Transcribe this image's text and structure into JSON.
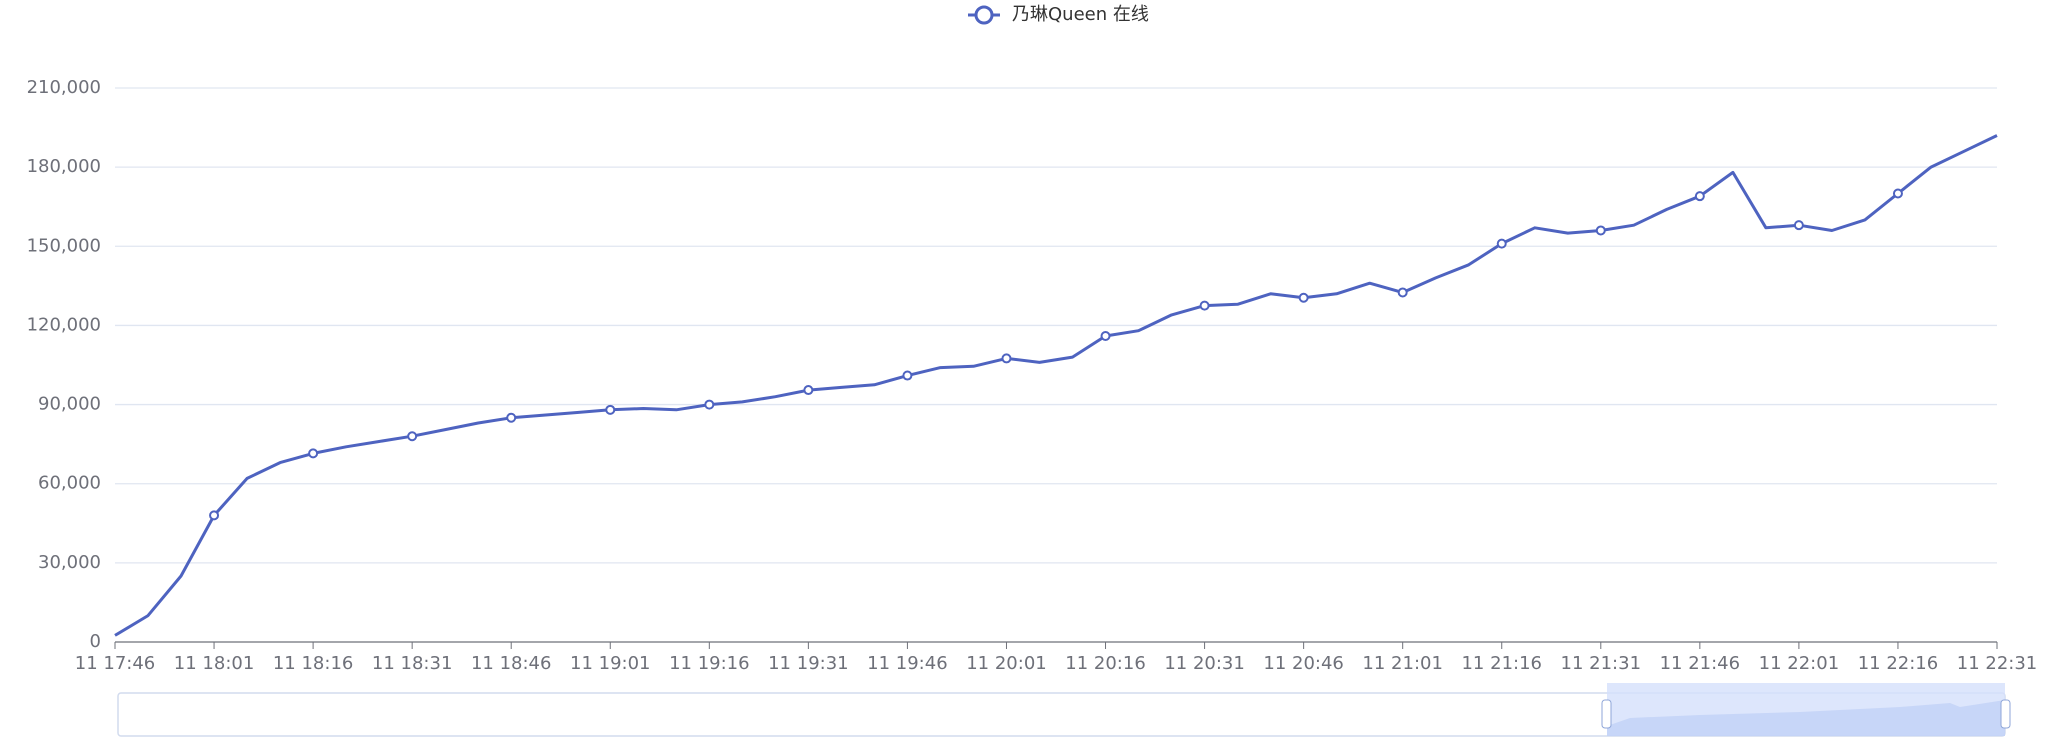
{
  "chart_data": {
    "type": "line",
    "legend_position": "top",
    "grid": true,
    "categories": [
      "11 17:46",
      null,
      null,
      "11 18:01",
      null,
      null,
      "11 18:16",
      null,
      null,
      "11 18:31",
      null,
      null,
      "11 18:46",
      null,
      null,
      "11 19:01",
      null,
      null,
      "11 19:16",
      null,
      null,
      "11 19:31",
      null,
      null,
      "11 19:46",
      null,
      null,
      "11 20:01",
      null,
      null,
      "11 20:16",
      null,
      null,
      "11 20:31",
      null,
      null,
      "11 20:46",
      null,
      null,
      "11 21:01",
      null,
      null,
      "11 21:16",
      null,
      null,
      "11 21:31",
      null,
      null,
      "11 21:46",
      null,
      null,
      "11 22:01",
      null,
      null,
      "11 22:16",
      null,
      null,
      "11 22:31"
    ],
    "series": [
      {
        "name": "乃琳Queen 在线",
        "color": "#4e63c0",
        "values": [
          2500,
          10000,
          25000,
          48000,
          62000,
          68000,
          71500,
          74000,
          76000,
          78000,
          80500,
          83000,
          85000,
          86000,
          87000,
          88000,
          88500,
          88000,
          90000,
          91000,
          93000,
          95500,
          96500,
          97500,
          101000,
          104000,
          104500,
          107500,
          106000,
          108000,
          116000,
          118000,
          124000,
          127500,
          128000,
          132000,
          130500,
          132000,
          136000,
          132500,
          138000,
          143000,
          151000,
          157000,
          155000,
          156000,
          158000,
          164000,
          169000,
          178000,
          157000,
          158000,
          156000,
          160000,
          170000,
          180000,
          186000,
          192000
        ]
      }
    ],
    "ylim": [
      0,
      210000
    ],
    "yticks": [
      0,
      {
        "value": 30000,
        "label": "30,000"
      },
      {
        "value": 60000,
        "label": "60,000"
      },
      {
        "value": 90000,
        "label": "90,000"
      },
      {
        "value": 120000,
        "label": "120,000"
      },
      {
        "value": 150000,
        "label": "150,000"
      },
      {
        "value": 180000,
        "label": "180,000"
      },
      {
        "value": 210000,
        "label": "210,000"
      }
    ]
  }
}
